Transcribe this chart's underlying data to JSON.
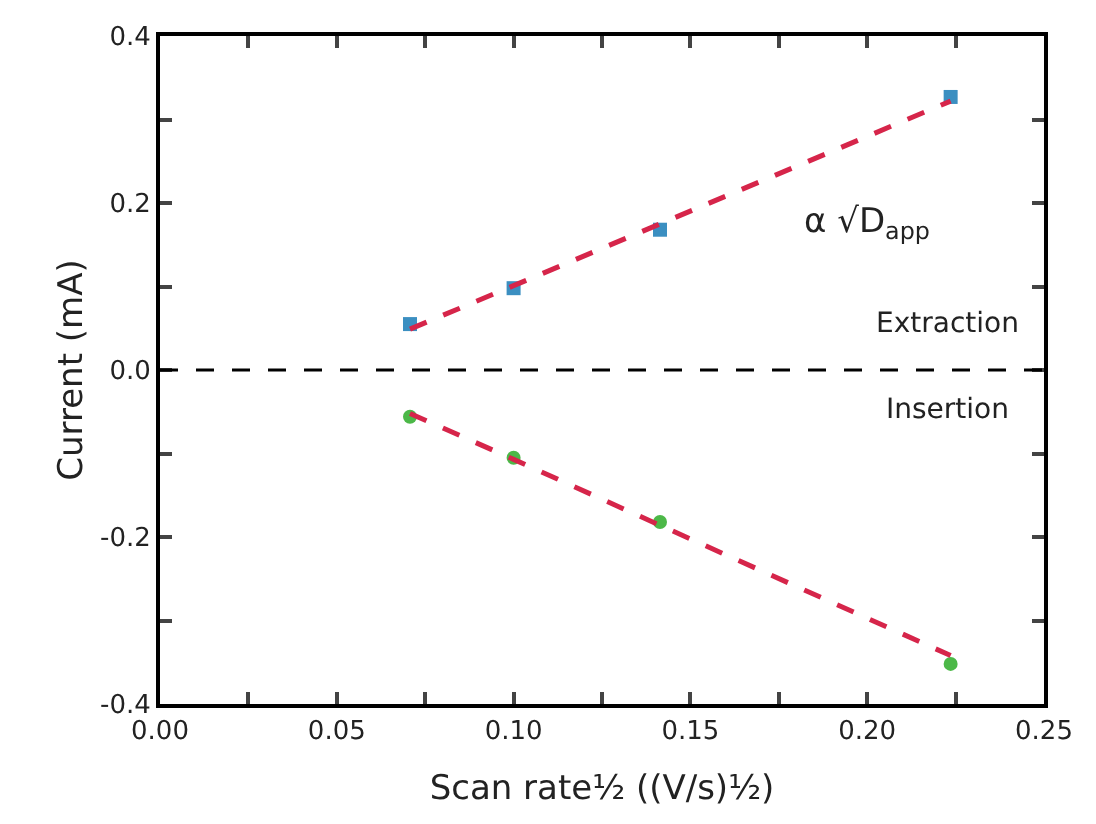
{
  "chart_data": {
    "type": "scatter",
    "xlabel": "Scan rate½ ((V/s)½)",
    "ylabel": "Current (mA)",
    "x": [
      0.0707,
      0.1,
      0.1414,
      0.2236
    ],
    "series": [
      {
        "color": "#3b8fc1",
        "marker": "square",
        "values": [
          0.055,
          0.098,
          0.168,
          0.327
        ]
      },
      {
        "color": "#4cb848",
        "marker": "circle",
        "values": [
          -0.056,
          -0.105,
          -0.182,
          -0.352
        ]
      },
      {
        "type": "line",
        "color": "#d6254a",
        "line_style": "dashed",
        "marker": "none",
        "values": [
          0.049,
          0.101,
          0.175,
          0.322
        ]
      },
      {
        "type": "line",
        "color": "#d6254a",
        "line_style": "dashed",
        "marker": "none",
        "values": [
          -0.052,
          -0.107,
          -0.186,
          -0.342
        ]
      }
    ],
    "xlim": [
      0,
      0.25
    ],
    "ylim": [
      -0.4,
      0.4
    ],
    "xticks": [
      {
        "value": 0,
        "label": "0.00"
      },
      {
        "value": 0.025,
        "label": null
      },
      {
        "value": 0.05,
        "label": "0.05"
      },
      {
        "value": 0.075,
        "label": null
      },
      {
        "value": 0.1,
        "label": "0.10"
      },
      {
        "value": 0.125,
        "label": null
      },
      {
        "value": 0.15,
        "label": "0.15"
      },
      {
        "value": 0.175,
        "label": null
      },
      {
        "value": 0.2,
        "label": "0.20"
      },
      {
        "value": 0.225,
        "label": null
      },
      {
        "value": 0.25,
        "label": "0.25"
      }
    ],
    "yticks": [
      -0.4,
      {
        "value": -0.3,
        "label": null
      },
      -0.2,
      {
        "value": -0.1,
        "label": null
      },
      {
        "value": 0,
        "label": "0.0"
      },
      {
        "value": 0.1,
        "label": null
      },
      0.2,
      {
        "value": 0.3,
        "label": null
      },
      0.4
    ],
    "ref_lines": [
      {
        "axis": "y",
        "value": 0,
        "color": "#000000",
        "line_style": "dashed"
      }
    ],
    "annotations": [
      "α √D$_{app}$",
      "Extraction",
      "Insertion"
    ]
  }
}
